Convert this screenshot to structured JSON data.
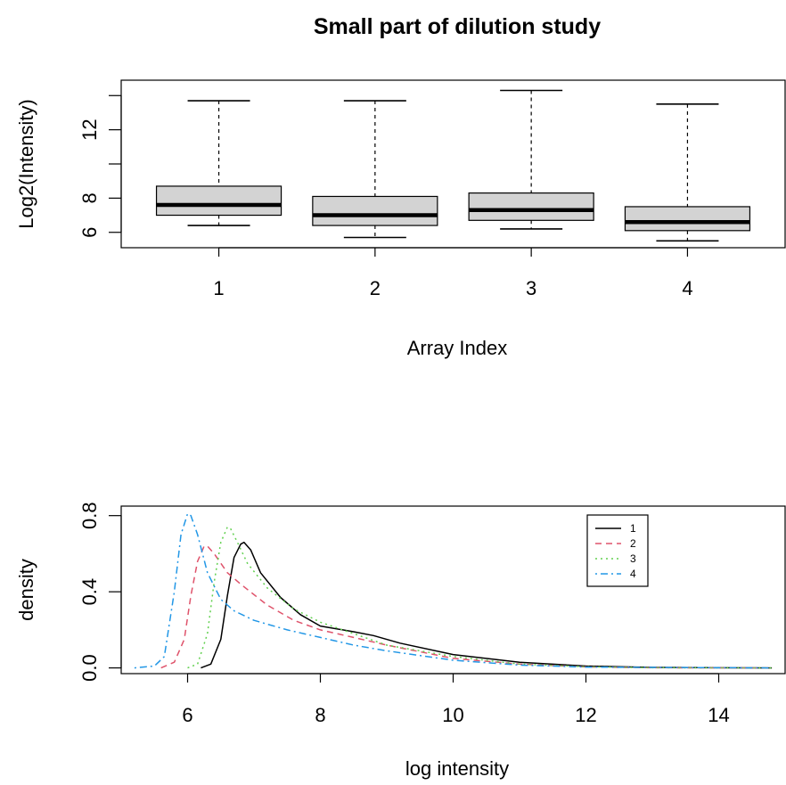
{
  "page": {
    "title": "Small part of dilution study"
  },
  "chart_data": [
    {
      "type": "box",
      "xlabel": "Array Index",
      "ylabel": "Log2(Intensity)",
      "categories": [
        "1",
        "2",
        "3",
        "4"
      ],
      "x_tick_labels": [
        "1",
        "2",
        "3",
        "4"
      ],
      "y_ticks": [
        6,
        8,
        10,
        12,
        14
      ],
      "y_tick_labels": [
        "6",
        "8",
        "",
        "12",
        ""
      ],
      "ylim": [
        5.1,
        14.9
      ],
      "boxes": [
        {
          "name": "1",
          "min": 6.4,
          "q1": 7.0,
          "median": 7.6,
          "q3": 8.7,
          "max": 13.7,
          "fill": "#d3d3d3"
        },
        {
          "name": "2",
          "min": 5.7,
          "q1": 6.4,
          "median": 7.0,
          "q3": 8.1,
          "max": 13.7,
          "fill": "#d3d3d3"
        },
        {
          "name": "3",
          "min": 6.2,
          "q1": 6.7,
          "median": 7.3,
          "q3": 8.3,
          "max": 14.3,
          "fill": "#d3d3d3"
        },
        {
          "name": "4",
          "min": 5.5,
          "q1": 6.1,
          "median": 6.6,
          "q3": 7.5,
          "max": 13.5,
          "fill": "#d3d3d3"
        }
      ]
    },
    {
      "type": "line",
      "xlabel": "log intensity",
      "ylabel": "density",
      "xlim": [
        5.0,
        15.0
      ],
      "ylim": [
        -0.03,
        0.85
      ],
      "x_ticks": [
        6,
        8,
        10,
        12,
        14
      ],
      "y_ticks": [
        0.0,
        0.4,
        0.8
      ],
      "y_tick_labels": [
        "0.0",
        "0.4",
        "0.8"
      ],
      "legend": {
        "placement": "top-right"
      },
      "series": [
        {
          "name": "1",
          "color": "#000000",
          "dash": "solid",
          "x": [
            6.2,
            6.35,
            6.5,
            6.6,
            6.7,
            6.8,
            6.85,
            6.95,
            7.1,
            7.4,
            7.7,
            8.0,
            8.5,
            8.8,
            9.2,
            10.0,
            11.0,
            12.0,
            13.0,
            14.0,
            14.8
          ],
          "y": [
            0.0,
            0.02,
            0.15,
            0.38,
            0.58,
            0.65,
            0.66,
            0.62,
            0.5,
            0.37,
            0.28,
            0.22,
            0.19,
            0.17,
            0.13,
            0.07,
            0.03,
            0.01,
            0.003,
            0.001,
            0.0
          ]
        },
        {
          "name": "2",
          "color": "#df536b",
          "dash": "dashed",
          "x": [
            5.6,
            5.8,
            5.95,
            6.05,
            6.15,
            6.25,
            6.3,
            6.4,
            6.6,
            6.8,
            7.2,
            7.6,
            8.0,
            8.5,
            9.0,
            10.0,
            11.0,
            12.0,
            13.0,
            14.8
          ],
          "y": [
            0.0,
            0.03,
            0.15,
            0.38,
            0.56,
            0.64,
            0.64,
            0.6,
            0.5,
            0.44,
            0.33,
            0.25,
            0.2,
            0.16,
            0.12,
            0.05,
            0.02,
            0.005,
            0.001,
            0.0
          ]
        },
        {
          "name": "3",
          "color": "#61d04f",
          "dash": "dotted",
          "x": [
            6.0,
            6.15,
            6.3,
            6.4,
            6.5,
            6.6,
            6.65,
            6.75,
            6.9,
            7.2,
            7.6,
            8.0,
            8.5,
            9.0,
            10.0,
            11.0,
            12.0,
            13.0,
            14.8
          ],
          "y": [
            0.0,
            0.02,
            0.18,
            0.45,
            0.66,
            0.74,
            0.73,
            0.66,
            0.55,
            0.42,
            0.31,
            0.24,
            0.18,
            0.12,
            0.06,
            0.02,
            0.006,
            0.001,
            0.0
          ]
        },
        {
          "name": "4",
          "color": "#2297e6",
          "dash": "dotdash",
          "x": [
            5.2,
            5.5,
            5.65,
            5.8,
            5.9,
            6.0,
            6.05,
            6.15,
            6.3,
            6.5,
            6.7,
            7.0,
            7.5,
            8.0,
            8.5,
            9.0,
            10.0,
            11.0,
            12.0,
            14.8
          ],
          "y": [
            0.0,
            0.01,
            0.06,
            0.4,
            0.7,
            0.81,
            0.8,
            0.7,
            0.5,
            0.36,
            0.3,
            0.25,
            0.2,
            0.16,
            0.12,
            0.09,
            0.04,
            0.015,
            0.004,
            0.0
          ]
        }
      ]
    }
  ]
}
